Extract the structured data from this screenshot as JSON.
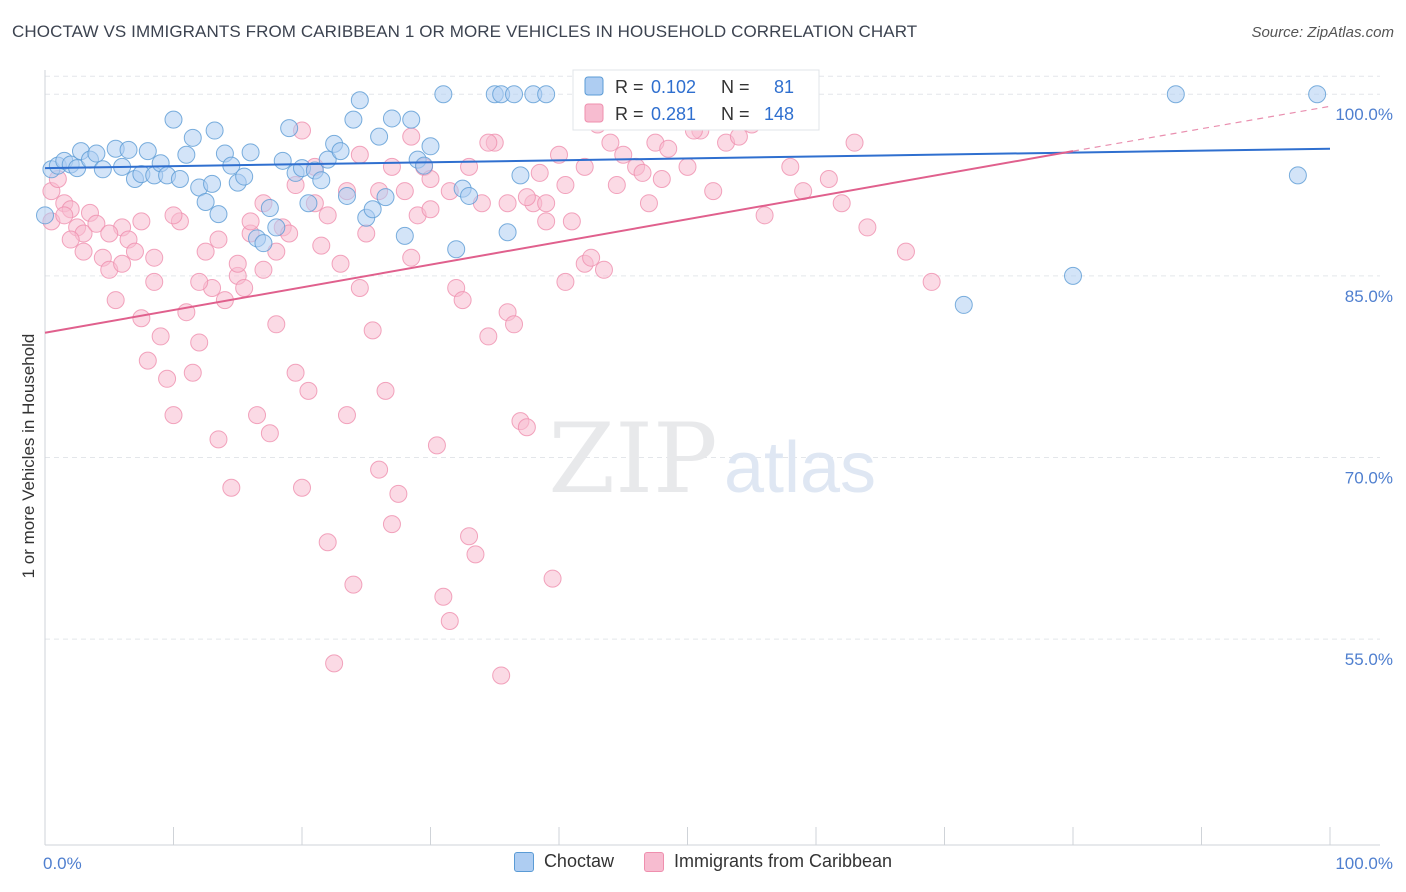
{
  "title": "CHOCTAW VS IMMIGRANTS FROM CARIBBEAN 1 OR MORE VEHICLES IN HOUSEHOLD CORRELATION CHART",
  "source": "Source: ZipAtlas.com",
  "watermark": {
    "zip": "ZIP",
    "atlas": "atlas"
  },
  "colors": {
    "blue": "#5b9bd5",
    "blue_fill": "#aecdf2",
    "blue_line": "#2f6fcf",
    "pink": "#ef8fae",
    "pink_fill": "#f7bcd0",
    "pink_line": "#e0608d",
    "axis_label": "#4f7fcf",
    "grid": "#e3e6ea"
  },
  "legend_box": [
    {
      "r_label": "R =",
      "r_value": "0.102",
      "n_label": "N =",
      "n_value": "81",
      "color": "blue"
    },
    {
      "r_label": "R =",
      "r_value": "0.281",
      "n_label": "N =",
      "n_value": "148",
      "color": "pink"
    }
  ],
  "legend_bottom": [
    {
      "label": "Choctaw",
      "color": "blue"
    },
    {
      "label": "Immigrants from Caribbean",
      "color": "pink"
    }
  ],
  "chart_data": {
    "type": "scatter",
    "title": "CHOCTAW VS IMMIGRANTS FROM CARIBBEAN 1 OR MORE VEHICLES IN HOUSEHOLD CORRELATION CHART",
    "xlabel": "",
    "ylabel": "1 or more Vehicles in Household",
    "xlim": [
      0,
      100
    ],
    "ylim": [
      38,
      102
    ],
    "x_tick_labels": [
      {
        "value": 0,
        "label": "0.0%"
      },
      {
        "value": 100,
        "label": "100.0%"
      }
    ],
    "y_tick_labels": [
      {
        "value": 55,
        "label": "55.0%"
      },
      {
        "value": 70,
        "label": "70.0%"
      },
      {
        "value": 85,
        "label": "85.0%"
      },
      {
        "value": 100,
        "label": "100.0%"
      }
    ],
    "grid": true,
    "series": [
      {
        "name": "Choctaw",
        "color": "blue",
        "trend": {
          "x": [
            0,
            100
          ],
          "y": [
            93.9,
            95.5
          ]
        },
        "points": [
          [
            0.5,
            93.8
          ],
          [
            1,
            94.1
          ],
          [
            1.5,
            94.5
          ],
          [
            2,
            94.2
          ],
          [
            2.5,
            93.9
          ],
          [
            2.8,
            95.3
          ],
          [
            3.5,
            94.6
          ],
          [
            4,
            95.1
          ],
          [
            4.5,
            93.8
          ],
          [
            5.5,
            95.5
          ],
          [
            6,
            94
          ],
          [
            6.5,
            95.4
          ],
          [
            7,
            93
          ],
          [
            7.5,
            93.4
          ],
          [
            8,
            95.3
          ],
          [
            8.5,
            93.3
          ],
          [
            9,
            94.3
          ],
          [
            9.5,
            93.3
          ],
          [
            10,
            97.9
          ],
          [
            10.5,
            93
          ],
          [
            11,
            95
          ],
          [
            11.5,
            96.4
          ],
          [
            12,
            92.3
          ],
          [
            12.5,
            91.1
          ],
          [
            13,
            92.6
          ],
          [
            13.2,
            97
          ],
          [
            13.5,
            90.1
          ],
          [
            14,
            95.1
          ],
          [
            14.5,
            94.1
          ],
          [
            15,
            92.7
          ],
          [
            15.5,
            93.2
          ],
          [
            16,
            95.2
          ],
          [
            16.5,
            88.1
          ],
          [
            17,
            87.7
          ],
          [
            17.5,
            90.6
          ],
          [
            18,
            89
          ],
          [
            18.5,
            94.5
          ],
          [
            19,
            97.2
          ],
          [
            19.5,
            93.5
          ],
          [
            20,
            93.9
          ],
          [
            20.5,
            91
          ],
          [
            21,
            93.7
          ],
          [
            21.5,
            92.9
          ],
          [
            22,
            94.6
          ],
          [
            22.5,
            95.9
          ],
          [
            23,
            95.3
          ],
          [
            23.5,
            91.6
          ],
          [
            24,
            97.9
          ],
          [
            24.5,
            99.5
          ],
          [
            25,
            89.8
          ],
          [
            25.5,
            90.5
          ],
          [
            26,
            96.5
          ],
          [
            26.5,
            91.5
          ],
          [
            27,
            98
          ],
          [
            28,
            88.3
          ],
          [
            28.5,
            97.9
          ],
          [
            29,
            94.6
          ],
          [
            29.5,
            94.1
          ],
          [
            30,
            95.7
          ],
          [
            31,
            100
          ],
          [
            32,
            87.2
          ],
          [
            32.5,
            92.2
          ],
          [
            33,
            91.6
          ],
          [
            35,
            100
          ],
          [
            35.5,
            100
          ],
          [
            36,
            88.6
          ],
          [
            36.5,
            100
          ],
          [
            37,
            93.3
          ],
          [
            38,
            100
          ],
          [
            39,
            100
          ],
          [
            44,
            100
          ],
          [
            45,
            100
          ],
          [
            47,
            100
          ],
          [
            48,
            100
          ],
          [
            50,
            100
          ],
          [
            71.5,
            82.6
          ],
          [
            80,
            85
          ],
          [
            88,
            100
          ],
          [
            97.5,
            93.3
          ],
          [
            99,
            100
          ],
          [
            0,
            90
          ]
        ]
      },
      {
        "name": "Immigrants from Caribbean",
        "color": "pink",
        "trend": {
          "x": [
            0,
            80
          ],
          "y": [
            80.3,
            95.3
          ]
        },
        "trend_dashed": {
          "x": [
            80,
            100
          ],
          "y": [
            95.3,
            99
          ]
        },
        "points": [
          [
            0.5,
            92
          ],
          [
            1,
            93
          ],
          [
            1.5,
            91
          ],
          [
            2,
            90.5
          ],
          [
            2.5,
            89
          ],
          [
            3,
            88.5
          ],
          [
            3.5,
            90.2
          ],
          [
            4,
            89.3
          ],
          [
            4.5,
            86.5
          ],
          [
            5,
            85.5
          ],
          [
            5.5,
            83
          ],
          [
            6,
            89
          ],
          [
            6.5,
            88
          ],
          [
            7,
            87
          ],
          [
            7.5,
            81.5
          ],
          [
            8,
            78
          ],
          [
            8.5,
            86.5
          ],
          [
            9,
            80
          ],
          [
            9.5,
            76.5
          ],
          [
            10,
            73.5
          ],
          [
            10.5,
            89.5
          ],
          [
            11,
            82
          ],
          [
            11.5,
            77
          ],
          [
            12,
            79.5
          ],
          [
            12.5,
            87
          ],
          [
            13,
            84
          ],
          [
            13.5,
            71.5
          ],
          [
            14,
            83
          ],
          [
            14.5,
            67.5
          ],
          [
            15,
            85
          ],
          [
            15.5,
            84
          ],
          [
            16,
            88.5
          ],
          [
            16.5,
            73.5
          ],
          [
            17,
            85.5
          ],
          [
            17.5,
            72
          ],
          [
            18,
            81
          ],
          [
            18.5,
            89
          ],
          [
            19,
            88.5
          ],
          [
            19.5,
            77
          ],
          [
            20,
            67.5
          ],
          [
            20.5,
            75.5
          ],
          [
            21,
            91
          ],
          [
            21.5,
            87.5
          ],
          [
            22,
            63
          ],
          [
            22.5,
            53
          ],
          [
            23,
            86
          ],
          [
            23.5,
            73.5
          ],
          [
            24,
            59.5
          ],
          [
            24.5,
            84
          ],
          [
            25,
            88.5
          ],
          [
            25.5,
            80.5
          ],
          [
            26,
            69
          ],
          [
            26.5,
            75.5
          ],
          [
            27,
            64.5
          ],
          [
            27.5,
            67
          ],
          [
            28,
            92
          ],
          [
            28.5,
            86.5
          ],
          [
            29,
            90
          ],
          [
            29.5,
            94
          ],
          [
            30,
            93
          ],
          [
            30.5,
            71
          ],
          [
            31,
            58.5
          ],
          [
            31.5,
            56.5
          ],
          [
            32,
            84
          ],
          [
            32.5,
            83
          ],
          [
            33,
            63.5
          ],
          [
            33.5,
            62
          ],
          [
            34,
            91
          ],
          [
            34.5,
            80
          ],
          [
            35,
            96
          ],
          [
            35.5,
            52
          ],
          [
            36,
            82
          ],
          [
            36.5,
            81
          ],
          [
            37,
            73
          ],
          [
            37.5,
            72.5
          ],
          [
            38,
            91
          ],
          [
            38.5,
            93.5
          ],
          [
            39,
            91
          ],
          [
            39.5,
            60
          ],
          [
            40,
            95
          ],
          [
            40.5,
            84.5
          ],
          [
            41,
            89.5
          ],
          [
            42,
            86
          ],
          [
            42.5,
            86.5
          ],
          [
            43,
            97.5
          ],
          [
            43.5,
            85.5
          ],
          [
            44,
            96
          ],
          [
            45,
            95
          ],
          [
            46,
            94
          ],
          [
            47,
            91
          ],
          [
            47.5,
            96
          ],
          [
            48,
            93
          ],
          [
            49,
            98
          ],
          [
            50,
            94
          ],
          [
            51,
            97
          ],
          [
            52,
            92
          ],
          [
            53,
            96
          ],
          [
            54,
            96.5
          ],
          [
            56,
            90
          ],
          [
            57,
            98
          ],
          [
            58,
            94
          ],
          [
            59,
            92
          ],
          [
            61,
            93
          ],
          [
            62,
            91
          ],
          [
            63,
            96
          ],
          [
            64,
            89
          ],
          [
            67,
            87
          ],
          [
            69,
            84.5
          ],
          [
            5,
            88.5
          ],
          [
            6,
            86
          ],
          [
            7.5,
            89.5
          ],
          [
            8.5,
            84.5
          ],
          [
            10,
            90
          ],
          [
            12,
            84.5
          ],
          [
            13.5,
            88
          ],
          [
            15,
            86
          ],
          [
            16,
            89.5
          ],
          [
            17,
            91
          ],
          [
            18,
            87
          ],
          [
            19.5,
            92.5
          ],
          [
            21,
            94
          ],
          [
            22,
            90
          ],
          [
            23.5,
            92
          ],
          [
            24.5,
            95
          ],
          [
            26,
            92
          ],
          [
            27,
            94
          ],
          [
            28.5,
            96.5
          ],
          [
            30,
            90.5
          ],
          [
            31.5,
            92
          ],
          [
            33,
            94
          ],
          [
            34.5,
            96
          ],
          [
            36,
            91
          ],
          [
            37.5,
            91.5
          ],
          [
            39,
            89.5
          ],
          [
            40.5,
            92.5
          ],
          [
            42,
            94
          ],
          [
            44.5,
            92.5
          ],
          [
            46.5,
            93.5
          ],
          [
            48.5,
            95.5
          ],
          [
            50.5,
            97
          ],
          [
            52,
            98
          ],
          [
            53.5,
            99
          ],
          [
            55,
            97.5
          ],
          [
            2,
            88
          ],
          [
            0.5,
            89.5
          ],
          [
            1.5,
            90
          ],
          [
            3,
            87
          ],
          [
            45,
            99
          ],
          [
            20,
            97
          ]
        ]
      }
    ]
  }
}
